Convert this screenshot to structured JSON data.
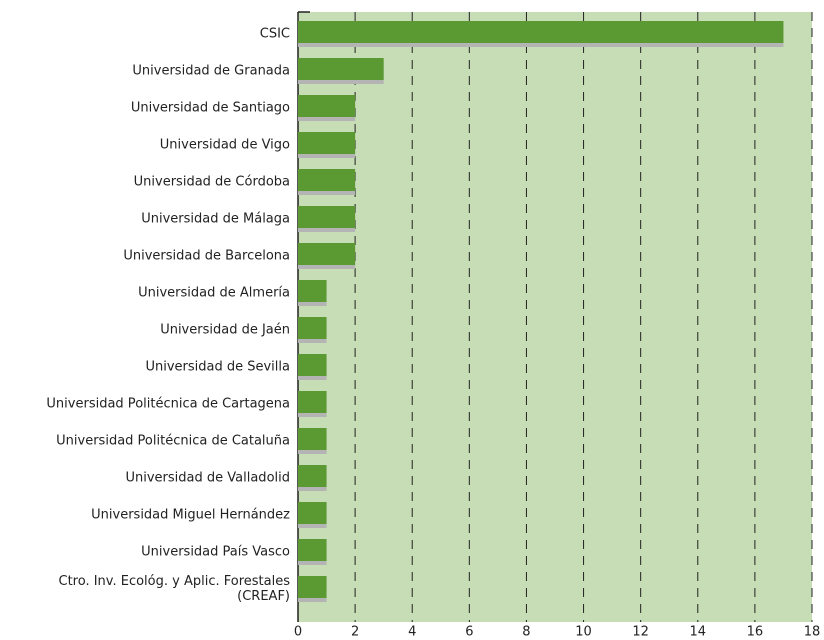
{
  "chart_data": {
    "type": "barh",
    "categories": [
      "CSIC",
      "Universidad de Granada",
      "Universidad de Santiago",
      "Universidad de Vigo",
      "Universidad de Córdoba",
      "Universidad de Málaga",
      "Universidad de Barcelona",
      "Universidad de Almería",
      "Universidad de Jaén",
      "Universidad de Sevilla",
      "Universidad Politécnica de Cartagena",
      "Universidad Politécnica de Cataluña",
      "Universidad de Valladolid",
      "Universidad Miguel Hernández",
      "Universidad País Vasco",
      "Ctro. Inv. Ecológ. y Aplic. Forestales\n(CREAF)"
    ],
    "values": [
      17,
      3,
      2,
      2,
      2,
      2,
      2,
      1,
      1,
      1,
      1,
      1,
      1,
      1,
      1,
      1
    ],
    "color": "#5b9a33",
    "shadow_color": "#b4b4b4",
    "background": "#c6ddb6",
    "xlim": [
      0,
      18
    ],
    "xticks": [
      0,
      2,
      4,
      6,
      8,
      10,
      12,
      14,
      16,
      18
    ],
    "grid": true
  }
}
